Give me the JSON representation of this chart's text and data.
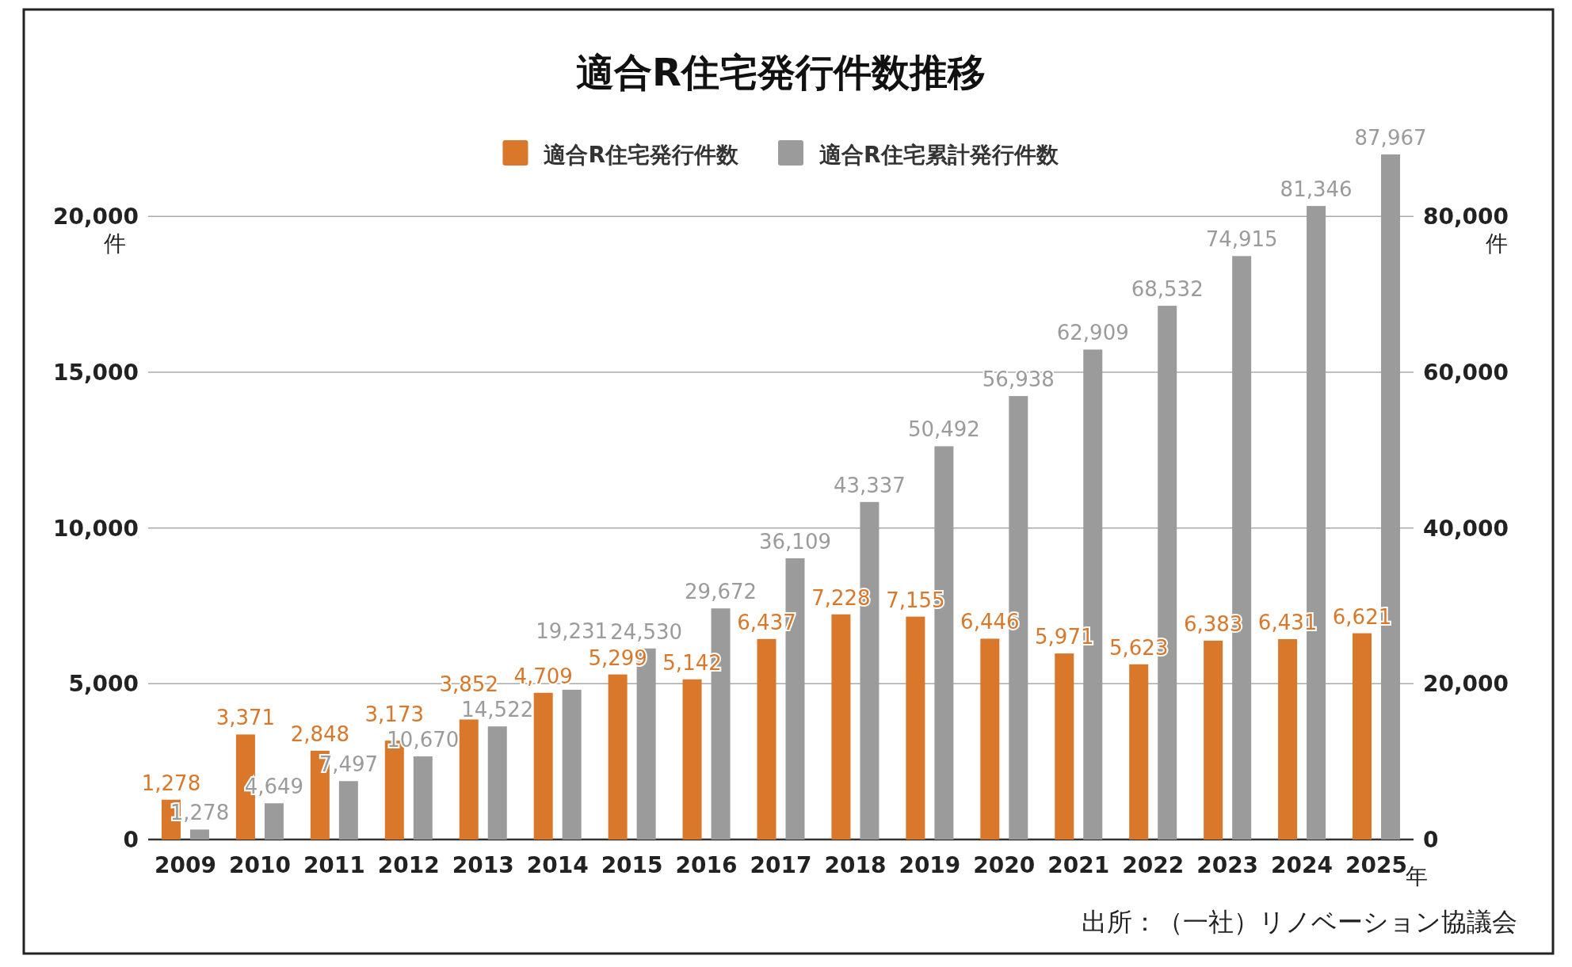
{
  "chart_data": {
    "type": "bar",
    "title": "適合R住宅発行件数推移",
    "categories": [
      "2009",
      "2010",
      "2011",
      "2012",
      "2013",
      "2014",
      "2015",
      "2016",
      "2017",
      "2018",
      "2019",
      "2020",
      "2021",
      "2022",
      "2023",
      "2024",
      "2025"
    ],
    "series": [
      {
        "name": "適合R住宅発行件数",
        "color": "#d9782a",
        "values": [
          1278,
          3371,
          2848,
          3173,
          3852,
          4709,
          5299,
          5142,
          6437,
          7228,
          7155,
          6446,
          5971,
          5623,
          6383,
          6431,
          6621
        ],
        "value_labels": [
          "1,278",
          "3,371",
          "2,848",
          "3,173",
          "3,852",
          "4,709",
          "5,299",
          "5,142",
          "6,437",
          "7,228",
          "7,155",
          "6,446",
          "5,971",
          "5,623",
          "6,383",
          "6,431",
          "6,621"
        ]
      },
      {
        "name": "適合R住宅累計発行件数",
        "color": "#9b9b9b",
        "axis": "y2",
        "values": [
          1278,
          4649,
          7497,
          10670,
          14522,
          19231,
          24530,
          29672,
          36109,
          43337,
          50492,
          56938,
          62909,
          68532,
          74915,
          81346,
          87967
        ],
        "value_labels": [
          "1,278",
          "4,649",
          "7,497",
          "10,670",
          "14,522",
          "19,231",
          "24,530",
          "29,672",
          "36,109",
          "43,337",
          "50,492",
          "56,938",
          "62,909",
          "68,532",
          "74,915",
          "81,346",
          "87,967"
        ]
      }
    ],
    "ylim": [
      0,
      22500
    ],
    "yticks": [
      {
        "value": 0,
        "label": "0"
      },
      {
        "value": 5000,
        "label": "5,000"
      },
      {
        "value": 10000,
        "label": "10,000"
      },
      {
        "value": 15000,
        "label": "15,000"
      },
      {
        "value": 20000,
        "label": "20,000"
      }
    ],
    "y2lim": [
      0,
      90000
    ],
    "y2ticks": [
      {
        "value": 0,
        "label": "0"
      },
      {
        "value": 20000,
        "label": "20,000"
      },
      {
        "value": 40000,
        "label": "40,000"
      },
      {
        "value": 60000,
        "label": "60,000"
      },
      {
        "value": 80000,
        "label": "80,000"
      }
    ],
    "ylabel": "件",
    "y2label": "件",
    "xlabel": "年",
    "grid": "y",
    "legend": "top",
    "annotations": [
      "出所：（一社）リノベーション協議会"
    ]
  }
}
